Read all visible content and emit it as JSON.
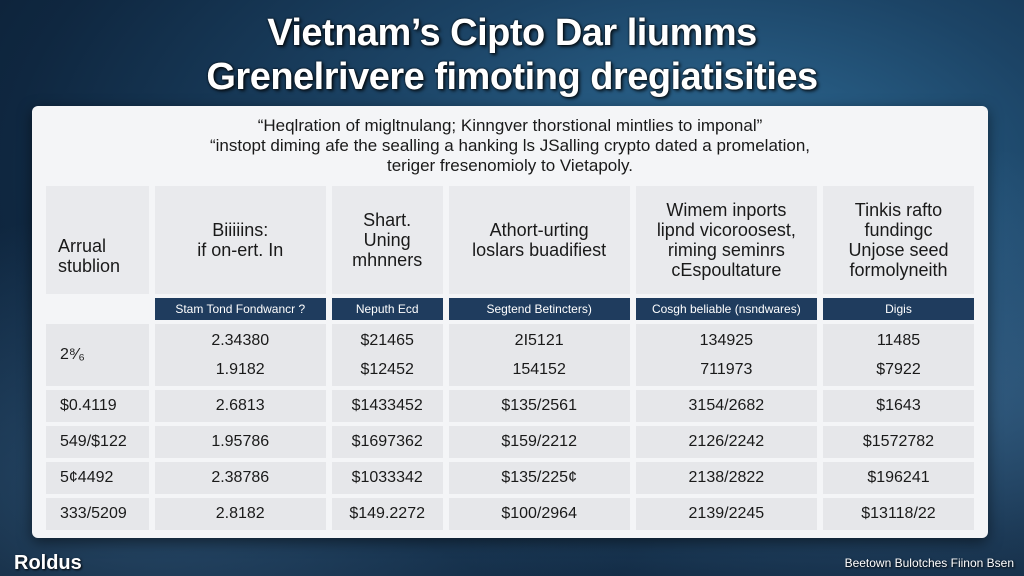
{
  "title": {
    "line1": "Vietnam’s Cipto Dar liumms",
    "line2": "Grenelrivere fimoting dregiatisities"
  },
  "subtitle": {
    "line1": "“Heqlration of migltnulang; Kinngver thorstional mintlies to imponal”",
    "line2": "“instopt diming afe the sealling a hanking ls JSalling crypto dated a promelation,",
    "line3": "teriger fresenomioly to Vietapoly."
  },
  "table": {
    "columns": [
      {
        "header": "Arrual\nstublion",
        "sub": ""
      },
      {
        "header": "Biiiiins:\nif on-ert. In",
        "sub": "Stam Tond Fondwancr ?"
      },
      {
        "header": "Shart.\nUning mhnners",
        "sub": "Neputh Ecd"
      },
      {
        "header": "Athort-urting\nloslars buadifiest",
        "sub": "Segtend Betincters)"
      },
      {
        "header": "Wimem inports\nlipnd vicoroosest,\nriming seminrs\ncEspoultature",
        "sub": "Cosgh beliable (nsndwares)"
      },
      {
        "header": "Tinkis rafto\nfundingc\nUnjose seed\nformolyneith",
        "sub": "Digis"
      }
    ],
    "rows": [
      {
        "cells": [
          "2⁸⁄₆",
          [
            "2.34380",
            "1.9182"
          ],
          [
            "$21465",
            "$12452"
          ],
          [
            "2I5121",
            "154152"
          ],
          [
            "134925",
            "711973"
          ],
          [
            "11485",
            "$7922"
          ]
        ]
      },
      {
        "cells": [
          "$0.4119",
          "2.6813",
          "$1433452",
          "$135/2561",
          "3154/2682",
          "$1643"
        ]
      },
      {
        "cells": [
          "549/$122",
          "1.95786",
          "$1697362",
          "$159/2212",
          "2126/2242",
          "$1572782"
        ]
      },
      {
        "cells": [
          "5¢4492",
          "2.38786",
          "$1033342",
          "$135/225¢",
          "2138/2822",
          "$196241"
        ]
      },
      {
        "cells": [
          "333/5209",
          "2.8182",
          "$149.2272",
          "$100/2964",
          "2139/2245",
          "$13118/22"
        ]
      }
    ]
  },
  "footer": {
    "brand": "Roldus",
    "credit": "Beetown Bulotches Fiinon Bsen"
  },
  "colors": {
    "subheader_bg": "#1f3c5e",
    "panel_bg": "#f4f5f7",
    "cell_bg": "#e6e7ea"
  }
}
